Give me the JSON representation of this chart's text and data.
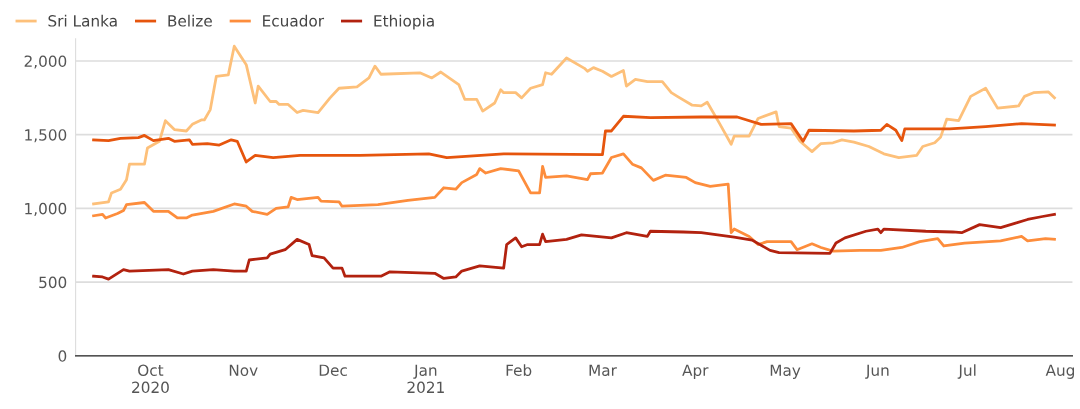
{
  "chart_data": {
    "type": "line",
    "xlim": [
      "2020-09-06",
      "2021-08-05"
    ],
    "xticks": [
      {
        "value": "2020-10-01",
        "label": "Oct\n2020"
      },
      {
        "value": "2020-11-01",
        "label": "Nov"
      },
      {
        "value": "2020-12-01",
        "label": "Dec"
      },
      {
        "value": "2021-01-01",
        "label": "Jan\n2021"
      },
      {
        "value": "2021-02-01",
        "label": "Feb"
      },
      {
        "value": "2021-03-01",
        "label": "Mar"
      },
      {
        "value": "2021-04-01",
        "label": "Apr"
      },
      {
        "value": "2021-05-01",
        "label": "May"
      },
      {
        "value": "2021-06-01",
        "label": "Jun"
      },
      {
        "value": "2021-07-01",
        "label": "Jul"
      },
      {
        "value": "2021-08-01",
        "label": "Aug"
      }
    ],
    "ylim": [
      0,
      2150
    ],
    "yticks": [
      0,
      500,
      {
        "value": 1000,
        "label": "1,000"
      },
      {
        "value": 1500,
        "label": "1,500"
      },
      {
        "value": 2000,
        "label": "2,000"
      }
    ],
    "grid": "y",
    "legend": "top left",
    "marker": "none",
    "line_style": "solid",
    "series": [
      {
        "name": "Sri Lanka",
        "color": "#fdc07a",
        "x": [
          "2020-09-12",
          "2020-09-17",
          "2020-09-18",
          "2020-09-21",
          "2020-09-23",
          "2020-09-24",
          "2020-09-29",
          "2020-09-30",
          "2020-10-04",
          "2020-10-06",
          "2020-10-09",
          "2020-10-13",
          "2020-10-15",
          "2020-10-18",
          "2020-10-19",
          "2020-10-21",
          "2020-10-23",
          "2020-10-27",
          "2020-10-29",
          "2020-11-02",
          "2020-11-05",
          "2020-11-06",
          "2020-11-10",
          "2020-11-12",
          "2020-11-13",
          "2020-11-16",
          "2020-11-19",
          "2020-11-21",
          "2020-11-26",
          "2020-11-30",
          "2020-12-03",
          "2020-12-09",
          "2020-12-13",
          "2020-12-15",
          "2020-12-17",
          "2020-12-30",
          "2021-01-03",
          "2021-01-06",
          "2021-01-12",
          "2021-01-14",
          "2021-01-18",
          "2021-01-20",
          "2021-01-24",
          "2021-01-26",
          "2021-01-27",
          "2021-01-31",
          "2021-02-02",
          "2021-02-05",
          "2021-02-09",
          "2021-02-10",
          "2021-02-12",
          "2021-02-17",
          "2021-02-23",
          "2021-02-24",
          "2021-02-26",
          "2021-03-01",
          "2021-03-04",
          "2021-03-08",
          "2021-03-09",
          "2021-03-12",
          "2021-03-16",
          "2021-03-21",
          "2021-03-24",
          "2021-03-26",
          "2021-03-31",
          "2021-04-03",
          "2021-04-05",
          "2021-04-09",
          "2021-04-13",
          "2021-04-14",
          "2021-04-19",
          "2021-04-22",
          "2021-04-28",
          "2021-04-29",
          "2021-05-03",
          "2021-05-06",
          "2021-05-10",
          "2021-05-13",
          "2021-05-17",
          "2021-05-20",
          "2021-05-24",
          "2021-05-29",
          "2021-06-03",
          "2021-06-08",
          "2021-06-14",
          "2021-06-16",
          "2021-06-20",
          "2021-06-22",
          "2021-06-24",
          "2021-06-28",
          "2021-07-02",
          "2021-07-07",
          "2021-07-11",
          "2021-07-18",
          "2021-07-20",
          "2021-07-23",
          "2021-07-28",
          "2021-07-30"
        ],
        "values": [
          1030,
          1045,
          1105,
          1130,
          1195,
          1300,
          1300,
          1410,
          1455,
          1595,
          1535,
          1525,
          1570,
          1600,
          1600,
          1670,
          1895,
          1905,
          2100,
          1975,
          1715,
          1830,
          1725,
          1725,
          1705,
          1705,
          1650,
          1665,
          1650,
          1750,
          1815,
          1825,
          1885,
          1965,
          1910,
          1920,
          1885,
          1925,
          1840,
          1740,
          1740,
          1660,
          1715,
          1805,
          1785,
          1785,
          1750,
          1815,
          1840,
          1920,
          1910,
          2020,
          1950,
          1930,
          1955,
          1930,
          1895,
          1935,
          1830,
          1875,
          1860,
          1860,
          1785,
          1760,
          1700,
          1695,
          1720,
          1580,
          1435,
          1490,
          1490,
          1610,
          1655,
          1555,
          1545,
          1455,
          1385,
          1440,
          1445,
          1465,
          1450,
          1420,
          1370,
          1345,
          1360,
          1420,
          1445,
          1485,
          1605,
          1595,
          1760,
          1815,
          1680,
          1695,
          1760,
          1785,
          1790,
          1750
        ]
      },
      {
        "name": "Belize",
        "color": "#e6550d",
        "x": [
          "2020-09-12",
          "2020-09-17",
          "2020-09-21",
          "2020-09-27",
          "2020-09-29",
          "2020-10-02",
          "2020-10-07",
          "2020-10-09",
          "2020-10-14",
          "2020-10-15",
          "2020-10-20",
          "2020-10-24",
          "2020-10-28",
          "2020-10-30",
          "2020-11-02",
          "2020-11-05",
          "2020-11-11",
          "2020-11-20",
          "2020-12-10",
          "2021-01-02",
          "2021-01-08",
          "2021-01-27",
          "2021-03-01",
          "2021-03-02",
          "2021-03-04",
          "2021-03-08",
          "2021-03-17",
          "2021-04-03",
          "2021-04-15",
          "2021-04-23",
          "2021-05-03",
          "2021-05-07",
          "2021-05-09",
          "2021-05-24",
          "2021-06-02",
          "2021-06-04",
          "2021-06-07",
          "2021-06-09",
          "2021-06-10",
          "2021-06-25",
          "2021-07-07",
          "2021-07-19",
          "2021-07-30"
        ],
        "values": [
          1465,
          1460,
          1475,
          1480,
          1495,
          1460,
          1475,
          1455,
          1465,
          1435,
          1440,
          1430,
          1465,
          1455,
          1315,
          1360,
          1345,
          1360,
          1360,
          1370,
          1345,
          1370,
          1365,
          1525,
          1525,
          1625,
          1615,
          1620,
          1620,
          1570,
          1575,
          1455,
          1530,
          1525,
          1530,
          1570,
          1530,
          1460,
          1540,
          1540,
          1555,
          1575,
          1565
        ]
      },
      {
        "name": "Ecuador",
        "color": "#fd8d3c",
        "x": [
          "2020-09-12",
          "2020-09-15",
          "2020-09-16",
          "2020-09-20",
          "2020-09-22",
          "2020-09-23",
          "2020-09-29",
          "2020-10-02",
          "2020-10-07",
          "2020-10-10",
          "2020-10-13",
          "2020-10-15",
          "2020-10-22",
          "2020-10-29",
          "2020-11-02",
          "2020-11-04",
          "2020-11-09",
          "2020-11-12",
          "2020-11-16",
          "2020-11-17",
          "2020-11-19",
          "2020-11-26",
          "2020-11-27",
          "2020-12-03",
          "2020-12-04",
          "2020-12-10",
          "2020-12-16",
          "2020-12-26",
          "2021-01-04",
          "2021-01-07",
          "2021-01-11",
          "2021-01-13",
          "2021-01-18",
          "2021-01-19",
          "2021-01-21",
          "2021-01-26",
          "2021-02-01",
          "2021-02-05",
          "2021-02-08",
          "2021-02-09",
          "2021-02-10",
          "2021-02-17",
          "2021-02-24",
          "2021-02-25",
          "2021-03-01",
          "2021-03-04",
          "2021-03-08",
          "2021-03-11",
          "2021-03-14",
          "2021-03-18",
          "2021-03-22",
          "2021-03-29",
          "2021-04-01",
          "2021-04-06",
          "2021-04-12",
          "2021-04-13",
          "2021-04-14",
          "2021-04-19",
          "2021-04-22",
          "2021-04-25",
          "2021-05-03",
          "2021-05-05",
          "2021-05-10",
          "2021-05-13",
          "2021-05-17",
          "2021-05-26",
          "2021-06-02",
          "2021-06-09",
          "2021-06-15",
          "2021-06-21",
          "2021-06-23",
          "2021-06-30",
          "2021-07-12",
          "2021-07-19",
          "2021-07-21",
          "2021-07-27",
          "2021-07-30"
        ],
        "values": [
          950,
          960,
          935,
          965,
          985,
          1025,
          1040,
          980,
          980,
          935,
          935,
          955,
          980,
          1030,
          1015,
          980,
          960,
          1000,
          1010,
          1075,
          1060,
          1075,
          1050,
          1045,
          1015,
          1020,
          1025,
          1055,
          1075,
          1140,
          1130,
          1175,
          1230,
          1270,
          1240,
          1270,
          1255,
          1105,
          1105,
          1285,
          1210,
          1220,
          1195,
          1235,
          1240,
          1345,
          1370,
          1300,
          1275,
          1190,
          1225,
          1210,
          1175,
          1150,
          1165,
          835,
          860,
          810,
          755,
          775,
          775,
          720,
          760,
          735,
          710,
          715,
          715,
          735,
          775,
          795,
          745,
          765,
          780,
          810,
          780,
          795,
          790
        ]
      },
      {
        "name": "Ethiopia",
        "color": "#b2220f",
        "x": [
          "2020-09-12",
          "2020-09-15",
          "2020-09-17",
          "2020-09-22",
          "2020-09-24",
          "2020-10-07",
          "2020-10-12",
          "2020-10-15",
          "2020-10-22",
          "2020-10-29",
          "2020-11-02",
          "2020-11-03",
          "2020-11-09",
          "2020-11-10",
          "2020-11-15",
          "2020-11-19",
          "2020-11-23",
          "2020-11-24",
          "2020-11-28",
          "2020-12-01",
          "2020-12-04",
          "2020-12-05",
          "2020-12-17",
          "2020-12-20",
          "2021-01-04",
          "2021-01-07",
          "2021-01-11",
          "2021-01-13",
          "2021-01-19",
          "2021-01-27",
          "2021-01-28",
          "2021-01-31",
          "2021-02-02",
          "2021-02-04",
          "2021-02-08",
          "2021-02-09",
          "2021-02-10",
          "2021-02-17",
          "2021-02-22",
          "2021-03-04",
          "2021-03-09",
          "2021-03-16",
          "2021-03-17",
          "2021-03-28",
          "2021-04-03",
          "2021-04-14",
          "2021-04-20",
          "2021-04-26",
          "2021-04-29",
          "2021-05-16",
          "2021-05-18",
          "2021-05-21",
          "2021-05-28",
          "2021-06-01",
          "2021-06-02",
          "2021-06-03",
          "2021-06-17",
          "2021-06-26",
          "2021-06-29",
          "2021-07-05",
          "2021-07-12",
          "2021-07-17",
          "2021-07-21",
          "2021-07-26",
          "2021-07-30"
        ],
        "values": [
          540,
          535,
          520,
          585,
          575,
          585,
          555,
          575,
          585,
          575,
          575,
          650,
          665,
          690,
          720,
          790,
          755,
          680,
          665,
          595,
          595,
          540,
          540,
          570,
          560,
          525,
          535,
          575,
          610,
          595,
          755,
          800,
          740,
          755,
          755,
          825,
          775,
          790,
          820,
          800,
          835,
          810,
          845,
          840,
          835,
          805,
          785,
          715,
          700,
          695,
          765,
          800,
          845,
          860,
          835,
          860,
          845,
          840,
          835,
          890,
          870,
          900,
          925,
          945,
          960
        ]
      }
    ]
  }
}
